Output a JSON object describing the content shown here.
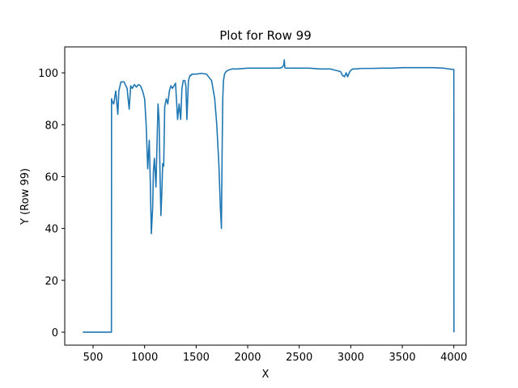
{
  "chart_data": {
    "type": "line",
    "title": "Plot for Row 99",
    "xlabel": "X",
    "ylabel": "Y (Row 99)",
    "xlim": [
      225,
      4120
    ],
    "ylim": [
      -5,
      110
    ],
    "xticks": [
      500,
      1000,
      1500,
      2000,
      2500,
      3000,
      3500,
      4000
    ],
    "yticks": [
      0,
      20,
      40,
      60,
      80,
      100
    ],
    "grid": false,
    "series": [
      {
        "color": "#1f77b4",
        "x": [
          400,
          500,
          600,
          678,
          679,
          685,
          700,
          720,
          740,
          750,
          770,
          800,
          830,
          850,
          865,
          880,
          900,
          920,
          940,
          960,
          980,
          1000,
          1015,
          1030,
          1045,
          1055,
          1065,
          1078,
          1085,
          1095,
          1110,
          1120,
          1130,
          1140,
          1150,
          1158,
          1168,
          1175,
          1185,
          1195,
          1210,
          1225,
          1240,
          1255,
          1270,
          1285,
          1300,
          1320,
          1335,
          1350,
          1362,
          1375,
          1390,
          1400,
          1410,
          1425,
          1440,
          1452,
          1460,
          1480,
          1500,
          1550,
          1600,
          1650,
          1680,
          1700,
          1720,
          1735,
          1745,
          1752,
          1758,
          1765,
          1775,
          1790,
          1810,
          1850,
          1900,
          2000,
          2100,
          2200,
          2300,
          2330,
          2350,
          2355,
          2360,
          2370,
          2400,
          2500,
          2600,
          2700,
          2800,
          2850,
          2900,
          2920,
          2940,
          2955,
          2970,
          2985,
          3000,
          3020,
          3050,
          3100,
          3200,
          3300,
          3400,
          3500,
          3600,
          3700,
          3800,
          3900,
          3950,
          4000,
          4001
        ],
        "y": [
          0,
          0,
          0,
          0,
          90,
          89,
          88,
          93,
          84,
          93,
          96.5,
          96.5,
          94,
          86,
          95,
          94,
          95.5,
          94.5,
          95.5,
          95,
          93,
          90,
          80,
          63,
          74,
          58,
          38,
          48,
          62,
          67,
          56,
          72,
          88,
          82,
          60,
          45,
          55,
          65,
          64,
          87,
          90,
          88,
          93,
          95,
          94,
          95,
          96,
          82,
          88,
          82,
          94,
          97,
          97,
          95,
          82,
          97,
          99,
          99,
          99.5,
          99.5,
          99.5,
          99.8,
          99.5,
          97,
          90,
          80,
          65,
          48,
          40,
          70,
          90,
          97,
          99.5,
          100.5,
          101,
          101.5,
          101.5,
          101.8,
          101.8,
          101.8,
          101.8,
          102,
          103,
          105,
          102,
          101.8,
          101.8,
          101.8,
          101.8,
          101.5,
          101.5,
          101,
          100.5,
          99,
          98.5,
          100,
          98.5,
          100,
          101,
          101.5,
          101.5,
          101.7,
          101.7,
          101.8,
          101.8,
          102,
          102,
          102,
          102,
          101.8,
          101.5,
          101.3,
          0
        ]
      }
    ]
  }
}
